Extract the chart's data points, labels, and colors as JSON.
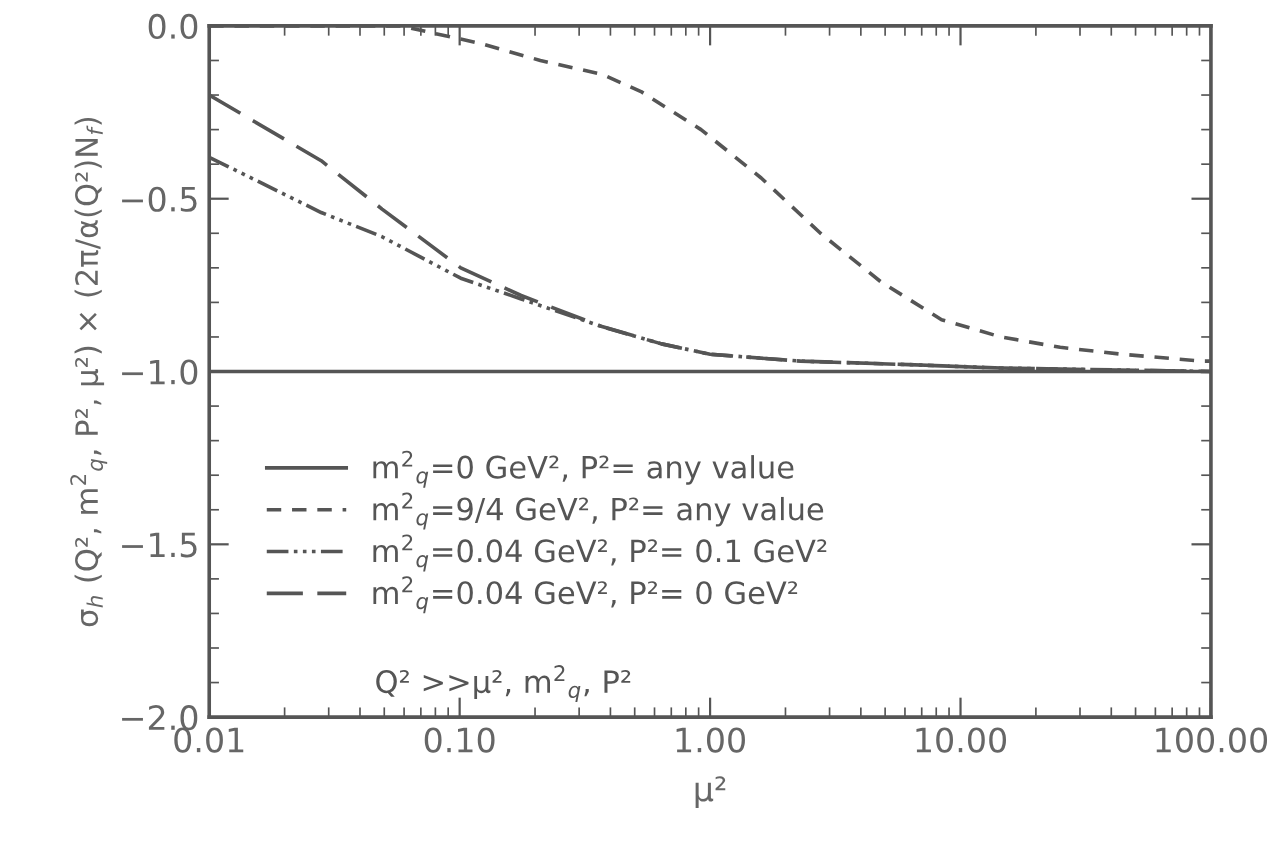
{
  "chart_data": {
    "type": "line",
    "xlabel": "μ²",
    "ylabel": "σ$_{h}$ (Q², m$^{2}$$_{q}$, P², μ²) × (2π/α(Q²)N$_{f}$)",
    "log": "x",
    "xlim": [
      0.01,
      100
    ],
    "ylim": [
      -2.0,
      0.0
    ],
    "xticks": [
      {
        "value": 0.01,
        "label": "0.01"
      },
      {
        "value": 0.1,
        "label": "0.10"
      },
      {
        "value": 1,
        "label": "1.00"
      },
      {
        "value": 10,
        "label": "10.00"
      },
      {
        "value": 100,
        "label": "100.00"
      }
    ],
    "yticks": [
      {
        "value": -2.0,
        "label": "−2.0"
      },
      {
        "value": -1.5,
        "label": "−1.5"
      },
      {
        "value": -1.0,
        "label": "−1.0"
      },
      {
        "value": -0.5,
        "label": "−0.5"
      },
      {
        "value": 0.0,
        "label": "0.0"
      }
    ],
    "grid": false,
    "legend": "bottom left",
    "marker": "none",
    "annotations": [
      "Q² >>μ², m$^{2}$$_{q}$, P²"
    ],
    "series": [
      {
        "name": "m$^{2}$$_{q}$=0 GeV², P²= any value",
        "color": "#555555",
        "line_style": "solid",
        "x": [
          0.01,
          100
        ],
        "values": [
          -1.0,
          -1.0
        ]
      },
      {
        "name": "m$^{2}$$_{q}$=9/4 GeV², P²= any value",
        "color": "#555555",
        "line_style": "dashed",
        "x": [
          0.01,
          0.058,
          0.12,
          0.21,
          0.37,
          0.53,
          0.92,
          1.6,
          2.76,
          4.8,
          8.4,
          14.5,
          25,
          44,
          92,
          100
        ],
        "values": [
          0.0,
          0.0,
          -0.05,
          -0.1,
          -0.14,
          -0.19,
          -0.3,
          -0.44,
          -0.6,
          -0.74,
          -0.85,
          -0.9,
          -0.93,
          -0.95,
          -0.97,
          -0.97
        ]
      },
      {
        "name": "m$^{2}$$_{q}$=0.04 GeV², P²= 0.1 GeV²",
        "color": "#555555",
        "line_style": "dashdotdot",
        "x": [
          0.01,
          0.028,
          0.049,
          0.101,
          0.176,
          0.37,
          0.64,
          1.0,
          2.3,
          6.2,
          14.5,
          100
        ],
        "values": [
          -0.38,
          -0.54,
          -0.61,
          -0.73,
          -0.79,
          -0.87,
          -0.92,
          -0.95,
          -0.97,
          -0.98,
          -0.99,
          -1.0
        ]
      },
      {
        "name": "m$^{2}$$_{q}$=0.04 GeV², P²= 0 GeV²",
        "color": "#555555",
        "line_style": "longdash",
        "x": [
          0.01,
          0.028,
          0.049,
          0.101,
          0.176,
          0.37,
          0.64,
          1.0,
          2.3,
          6.2,
          14.5,
          100
        ],
        "values": [
          -0.2,
          -0.39,
          -0.53,
          -0.7,
          -0.78,
          -0.87,
          -0.92,
          -0.95,
          -0.97,
          -0.98,
          -0.99,
          -1.0
        ]
      }
    ]
  }
}
